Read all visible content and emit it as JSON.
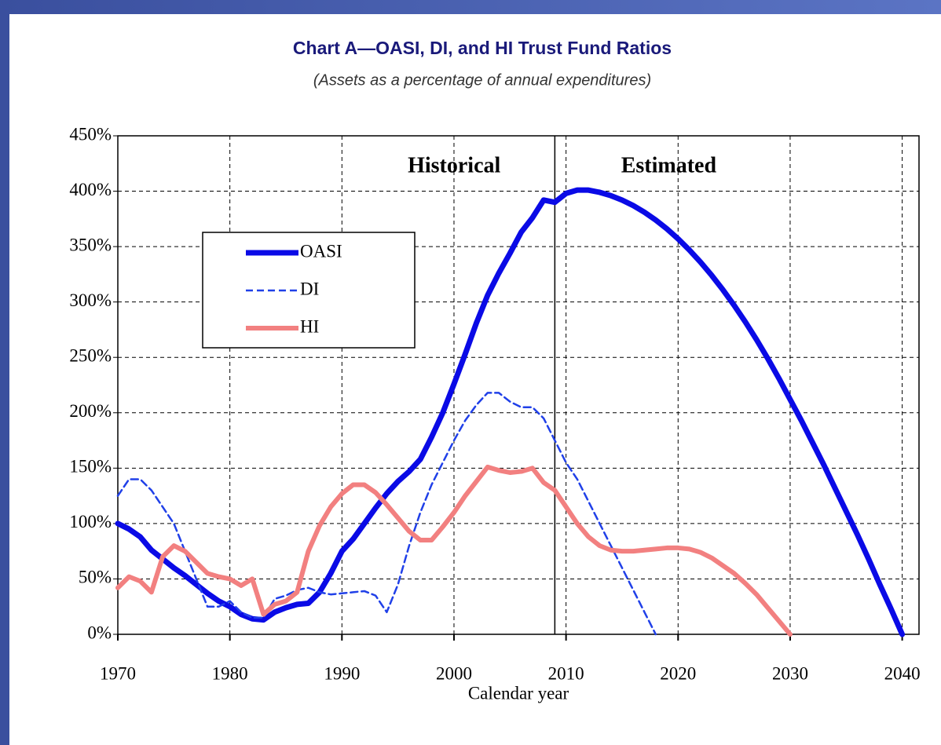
{
  "chart_data": {
    "type": "line",
    "title": "Chart A—OASI, DI, and HI Trust Fund Ratios",
    "subtitle": "(Assets as a percentage of annual expenditures)",
    "x_label": "Calendar year",
    "annotations": [
      "Historical",
      "Estimated"
    ],
    "divider": 2009,
    "xlim": [
      1970,
      2041.5
    ],
    "xticks": [
      1970,
      1980,
      1990,
      2000,
      2010,
      2020,
      2030,
      2040
    ],
    "ylim": [
      0,
      450
    ],
    "yticks": [
      {
        "value": 0,
        "label": "0%"
      },
      {
        "value": 50,
        "label": "50%"
      },
      {
        "value": 100,
        "label": "100%"
      },
      {
        "value": 150,
        "label": "150%"
      },
      {
        "value": 200,
        "label": "200%"
      },
      {
        "value": 250,
        "label": "250%"
      },
      {
        "value": 300,
        "label": "300%"
      },
      {
        "value": 350,
        "label": "350%"
      },
      {
        "value": 400,
        "label": "400%"
      },
      {
        "value": 450,
        "label": "450%"
      }
    ],
    "grid": true,
    "legend": "upper left",
    "series": [
      {
        "name": "OASI",
        "color": "#0a0ae6",
        "style": "solid",
        "width": 7,
        "x": [
          1970,
          1971,
          1972,
          1973,
          1974,
          1975,
          1976,
          1977,
          1978,
          1979,
          1980,
          1981,
          1982,
          1983,
          1984,
          1985,
          1986,
          1987,
          1988,
          1989,
          1990,
          1991,
          1992,
          1993,
          1994,
          1995,
          1996,
          1997,
          1998,
          1999,
          2000,
          2001,
          2002,
          2003,
          2004,
          2005,
          2006,
          2007,
          2008,
          2009,
          2010,
          2011,
          2012,
          2013,
          2014,
          2015,
          2016,
          2017,
          2018,
          2019,
          2020,
          2021,
          2022,
          2023,
          2024,
          2025,
          2026,
          2027,
          2028,
          2029,
          2030,
          2031,
          2032,
          2033,
          2034,
          2035,
          2036,
          2037,
          2038,
          2039,
          2040
        ],
        "values": [
          100,
          95,
          88,
          76,
          68,
          60,
          53,
          45,
          37,
          30,
          25,
          18,
          14,
          13,
          20,
          24,
          27,
          28,
          38,
          55,
          75,
          86,
          100,
          114,
          127,
          138,
          147,
          158,
          178,
          200,
          226,
          253,
          281,
          306,
          326,
          344,
          363,
          376,
          392,
          390,
          398,
          401,
          401,
          399,
          396,
          392,
          387,
          381,
          374,
          366,
          357,
          347,
          336,
          324,
          311,
          297,
          282,
          266,
          249,
          231,
          212,
          193,
          173,
          153,
          132,
          111,
          90,
          68,
          45,
          23,
          0
        ]
      },
      {
        "name": "DI",
        "color": "#2040e8",
        "style": "dashed",
        "width": 2.5,
        "x": [
          1970,
          1971,
          1972,
          1973,
          1974,
          1975,
          1976,
          1977,
          1978,
          1979,
          1980,
          1981,
          1982,
          1983,
          1984,
          1985,
          1986,
          1987,
          1988,
          1989,
          1990,
          1991,
          1992,
          1993,
          1994,
          1995,
          1996,
          1997,
          1998,
          1999,
          2000,
          2001,
          2002,
          2003,
          2004,
          2005,
          2006,
          2007,
          2008,
          2009,
          2010,
          2011,
          2012,
          2013,
          2014,
          2015,
          2016,
          2017,
          2018
        ],
        "values": [
          125,
          140,
          140,
          130,
          115,
          100,
          75,
          50,
          25,
          25,
          30,
          20,
          15,
          15,
          32,
          35,
          40,
          42,
          38,
          36,
          37,
          38,
          39,
          35,
          20,
          45,
          80,
          110,
          135,
          155,
          175,
          193,
          207,
          218,
          218,
          210,
          205,
          205,
          195,
          175,
          155,
          140,
          120,
          100,
          80,
          60,
          40,
          20,
          0
        ]
      },
      {
        "name": "HI",
        "color": "#f28080",
        "style": "solid",
        "width": 6,
        "x": [
          1970,
          1971,
          1972,
          1973,
          1974,
          1975,
          1976,
          1977,
          1978,
          1979,
          1980,
          1981,
          1982,
          1983,
          1984,
          1985,
          1986,
          1987,
          1988,
          1989,
          1990,
          1991,
          1992,
          1993,
          1994,
          1995,
          1996,
          1997,
          1998,
          1999,
          2000,
          2001,
          2002,
          2003,
          2004,
          2005,
          2006,
          2007,
          2008,
          2009,
          2010,
          2011,
          2012,
          2013,
          2014,
          2015,
          2016,
          2017,
          2018,
          2019,
          2020,
          2021,
          2022,
          2023,
          2024,
          2025,
          2026,
          2027,
          2028,
          2029,
          2030
        ],
        "values": [
          42,
          52,
          48,
          38,
          70,
          80,
          75,
          65,
          55,
          52,
          50,
          44,
          50,
          18,
          27,
          30,
          38,
          75,
          98,
          115,
          127,
          135,
          135,
          128,
          117,
          105,
          93,
          85,
          85,
          97,
          110,
          125,
          138,
          151,
          148,
          146,
          147,
          150,
          137,
          130,
          115,
          100,
          88,
          80,
          76,
          75,
          75,
          76,
          77,
          78,
          78,
          77,
          74,
          69,
          62,
          55,
          46,
          36,
          24,
          12,
          0
        ]
      }
    ]
  }
}
